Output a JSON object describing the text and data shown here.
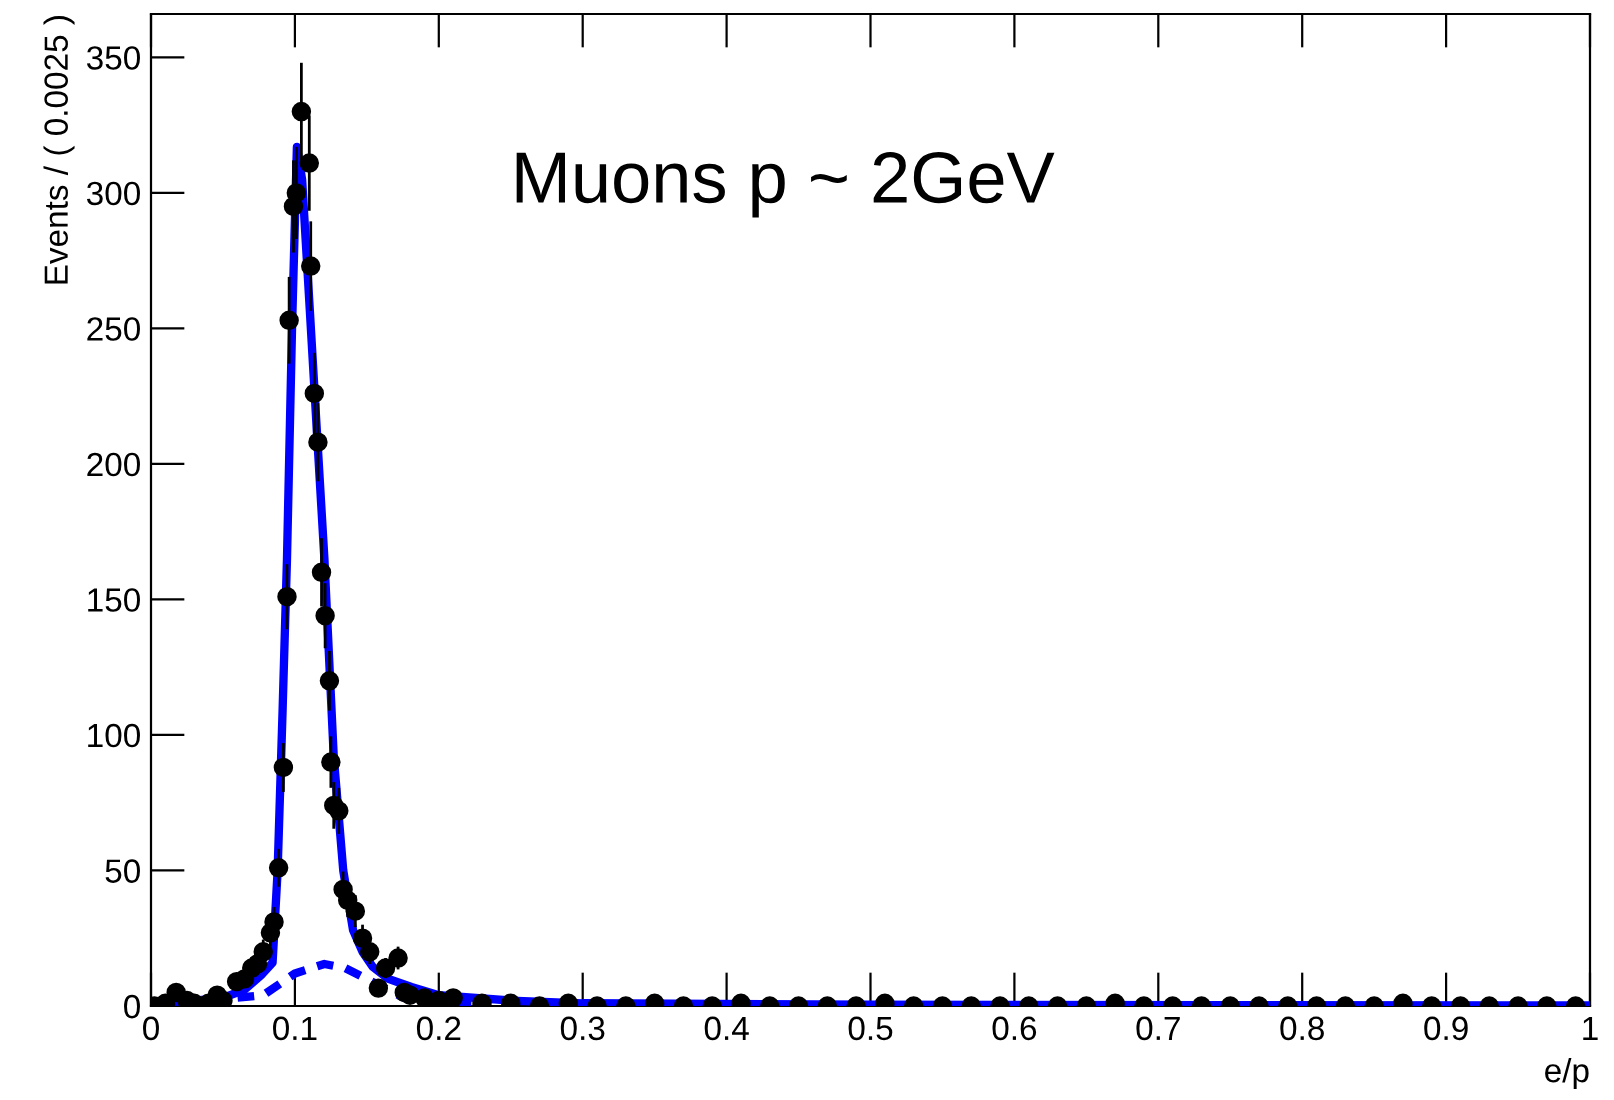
{
  "chart_data": {
    "type": "scatter",
    "xlabel": "e/p",
    "ylabel": "Events / ( 0.0025 )",
    "annotations": [
      "Muons p ~ 2GeV"
    ],
    "xlim": [
      0,
      1
    ],
    "ylim": [
      0,
      366
    ],
    "xticks": [
      0,
      0.1,
      0.2,
      0.3,
      0.4,
      0.5,
      0.6,
      0.7,
      0.8,
      0.9,
      1
    ],
    "yticks": [
      0,
      50,
      100,
      150,
      200,
      250,
      300,
      350
    ],
    "grid": false,
    "legend": false,
    "series": [
      {
        "color": "#000000",
        "marker": "circle",
        "x": [
          0.0025,
          0.01,
          0.0175,
          0.025,
          0.03,
          0.04,
          0.046,
          0.05,
          0.0595,
          0.065,
          0.07,
          0.074,
          0.078,
          0.083,
          0.0855,
          0.0887,
          0.092,
          0.0945,
          0.096,
          0.099,
          0.101,
          0.1045,
          0.11,
          0.111,
          0.1135,
          0.116,
          0.1185,
          0.121,
          0.124,
          0.125,
          0.127,
          0.1305,
          0.1335,
          0.1367,
          0.142,
          0.147,
          0.152,
          0.158,
          0.163,
          0.1717,
          0.176,
          0.18,
          0.19,
          0.2,
          0.21,
          0.23,
          0.25,
          0.27,
          0.29,
          0.31,
          0.33,
          0.35,
          0.37,
          0.39,
          0.41,
          0.43,
          0.45,
          0.47,
          0.49,
          0.51,
          0.53,
          0.55,
          0.57,
          0.59,
          0.61,
          0.63,
          0.65,
          0.67,
          0.69,
          0.71,
          0.73,
          0.75,
          0.77,
          0.79,
          0.81,
          0.83,
          0.85,
          0.87,
          0.89,
          0.91,
          0.93,
          0.95,
          0.97,
          0.99
        ],
        "values": [
          0,
          1,
          5,
          2,
          1,
          1,
          4,
          2,
          9,
          10,
          14,
          15.5,
          20,
          27,
          31,
          51,
          88,
          151,
          253,
          295,
          300,
          330,
          311,
          273,
          226,
          208,
          160,
          144,
          120,
          90,
          74,
          72,
          43,
          39,
          35,
          25,
          20,
          6.6,
          14,
          17.7,
          5,
          4,
          3,
          2,
          3,
          1,
          1,
          0,
          1,
          0,
          0,
          1,
          0,
          0,
          1,
          0,
          0,
          0,
          0,
          1,
          0,
          0,
          0,
          0,
          0,
          0,
          0,
          1,
          0,
          0,
          0,
          0,
          0,
          0,
          0,
          0,
          0,
          1,
          0,
          0,
          0,
          0,
          0,
          0
        ],
        "errors": [
          1,
          1,
          2,
          1.4,
          1,
          1,
          2,
          1.4,
          3,
          3,
          4,
          4,
          4.5,
          5,
          5.5,
          7,
          9,
          12,
          16,
          17,
          17,
          18,
          17.6,
          16.5,
          15,
          14.4,
          12.6,
          12,
          11,
          9.5,
          8.6,
          8.5,
          6.6,
          6.2,
          5.9,
          5,
          4.5,
          2.6,
          3.7,
          4.2,
          2.2,
          2,
          1.7,
          1.4,
          1.7,
          1,
          1,
          1,
          1,
          1,
          1,
          1,
          1,
          1,
          1,
          1,
          1,
          1,
          1,
          1,
          1,
          1,
          1,
          1,
          1,
          1,
          1,
          1,
          1,
          1,
          1,
          1,
          1,
          1,
          1,
          1,
          1,
          1,
          1,
          1,
          1,
          1,
          1,
          1
        ]
      },
      {
        "type": "line",
        "color": "#0000ff",
        "line_style": "solid",
        "marker": "none",
        "x": [
          0,
          0.03,
          0.05,
          0.065,
          0.077,
          0.0845,
          0.088,
          0.0915,
          0.0945,
          0.098,
          0.1014,
          0.105,
          0.11,
          0.1155,
          0.1205,
          0.127,
          0.1336,
          0.1404,
          0.147,
          0.154,
          0.165,
          0.181,
          0.2,
          0.25,
          0.3,
          0.5,
          0.75,
          1
        ],
        "values": [
          1,
          2,
          3,
          6,
          11.6,
          16,
          50,
          110,
          165,
          250,
          317,
          305,
          260,
          210,
          165,
          92,
          50,
          28,
          20,
          14.5,
          10,
          7,
          4,
          2,
          1,
          0.5,
          0.3,
          0.2
        ]
      },
      {
        "type": "line",
        "color": "#0000ff",
        "line_style": "dashed",
        "marker": "none",
        "x": [
          0.04,
          0.078,
          0.1,
          0.1205,
          0.135,
          0.147,
          0.176,
          0.226
        ],
        "values": [
          2,
          4,
          12,
          15.5,
          14,
          10.8,
          2.9,
          1
        ]
      }
    ]
  }
}
